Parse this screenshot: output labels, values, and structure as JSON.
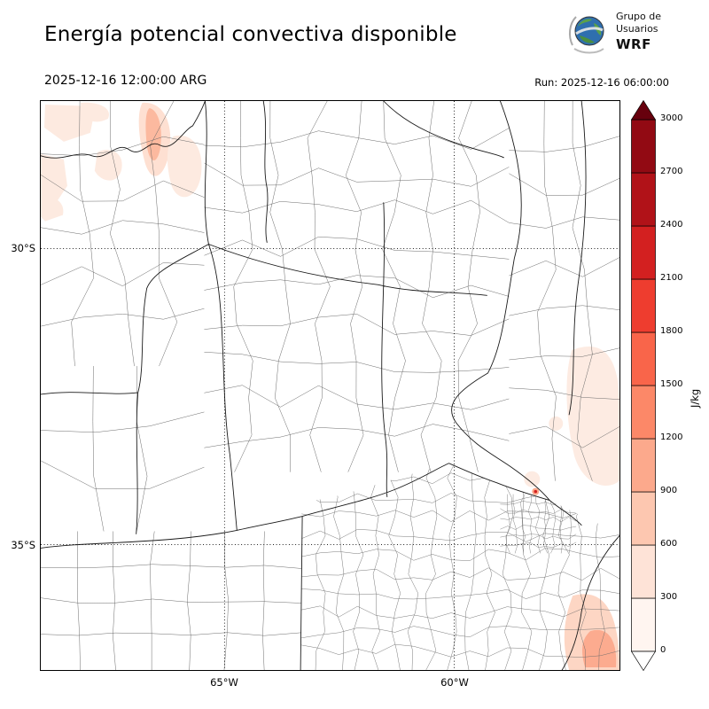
{
  "header": {
    "title": "Energía potencial convectiva disponible",
    "valid_time": "2025-12-16 12:00:00 ARG",
    "run_label": "Run: 2025-12-16 06:00:00",
    "logo": {
      "line1": "Grupo de",
      "line2": "Usuarios",
      "line3": "WRF"
    }
  },
  "map_axes": {
    "x_tick_labels": [
      "65°W",
      "60°W"
    ],
    "y_tick_labels": [
      "30°S",
      "35°S"
    ]
  },
  "colorbar": {
    "label": "J/kg",
    "ticks": [
      0,
      300,
      600,
      900,
      1200,
      1500,
      1800,
      2100,
      2400,
      2700,
      3000
    ],
    "segment_colors_low_to_high": [
      "#fff5f0",
      "#fee3d7",
      "#fdc7b0",
      "#fca98c",
      "#fc8868",
      "#f9654a",
      "#ee3d2f",
      "#d32020",
      "#b11218",
      "#920a13"
    ],
    "over_color": "#67000d",
    "under_color": "#ffffff"
  },
  "chart_data": {
    "type": "heatmap",
    "title": "Energía potencial convectiva disponible",
    "valid_time_local": "2025-12-16 12:00:00 ARG",
    "model_run": "Run: 2025-12-16 06:00:00",
    "units": "J/kg",
    "value_range": [
      0,
      3000
    ],
    "colorbar_ticks": [
      0,
      300,
      600,
      900,
      1200,
      1500,
      1800,
      2100,
      2400,
      2700,
      3000
    ],
    "x_axis_ticks": [
      "65°W",
      "60°W"
    ],
    "y_axis_ticks": [
      "30°S",
      "35°S"
    ],
    "grid": "dotted graticule at labeled meridians/parallels",
    "legend_position": "right vertical colorbar with over/under arrows",
    "observed_regions": [
      {
        "region": "northwest corner of domain (north of 30°S, west of 65°W)",
        "cape_jkg": "150-600, small streak near 600"
      },
      {
        "region": "east edge of domain (~31-33°S, right border)",
        "cape_jkg": "100-300"
      },
      {
        "region": "near Río de la Plata / delta (~34.5°S)",
        "cape_jkg": "small spot 600-900"
      },
      {
        "region": "southeast corner near coast",
        "cape_jkg": "150-900"
      },
      {
        "region": "remainder of domain",
        "cape_jkg": "0"
      }
    ]
  }
}
